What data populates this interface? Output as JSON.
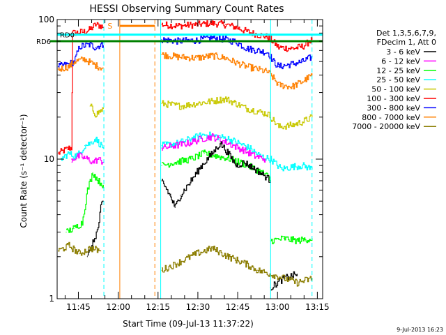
{
  "chart_data": {
    "type": "line",
    "title": "HESSI Observing Summary Count Rates",
    "xlabel": "Start Time (09-Jul-13 11:37:22)",
    "ylabel": "Count Rate (s⁻¹ detector⁻¹)",
    "yscale": "log",
    "ylim": [
      1,
      100
    ],
    "xlim_minutes": [
      -0.4,
      99.6
    ],
    "x_ticks": [
      {
        "label": "11:45",
        "min": 7.6
      },
      {
        "label": "12:00",
        "min": 22.6
      },
      {
        "label": "12:15",
        "min": 37.6
      },
      {
        "label": "12:30",
        "min": 52.6
      },
      {
        "label": "12:45",
        "min": 67.6
      },
      {
        "label": "13:00",
        "min": 82.6
      },
      {
        "label": "13:15",
        "min": 97.6
      }
    ],
    "y_ticks": [
      {
        "label": "1",
        "value": 1
      },
      {
        "label": "10",
        "value": 10
      },
      {
        "label": "100",
        "value": 100
      }
    ],
    "legend": {
      "placement": "right",
      "header": [
        "Det 1,3,5,6,7,9,",
        "FDecim 1, Att 0"
      ],
      "entries": [
        {
          "label": "3 - 6 keV",
          "color": "#000000"
        },
        {
          "label": "6 - 12 keV",
          "color": "#ff00ff"
        },
        {
          "label": "12 - 25 keV",
          "color": "#00ff00"
        },
        {
          "label": "25 - 50 keV",
          "color": "#00ffff"
        },
        {
          "label": "50 - 100 keV",
          "color": "#c8c800"
        },
        {
          "label": "100 - 300 keV",
          "color": "#ff0000"
        },
        {
          "label": "300 - 800 keV",
          "color": "#0000ff"
        },
        {
          "label": "800 - 7000 keV",
          "color": "#ff8000"
        },
        {
          "label": "7000 - 20000 keV",
          "color": "#8b7d00"
        }
      ]
    },
    "annotations": {
      "rd0_label": "RD0",
      "rd6_label": "RD6",
      "marker_s": "S",
      "rd0_value": 78,
      "rd6_value": 70,
      "rd0_color": "#00ffff",
      "rd6_color": "#008000"
    },
    "vertical_lines": [
      {
        "min": 17.2,
        "color": "#00ffff",
        "style": "dashed"
      },
      {
        "min": 23.2,
        "color": "#ff8000",
        "style": "solid"
      },
      {
        "min": 36.4,
        "color": "#ff8000",
        "style": "dashed"
      },
      {
        "min": 38.6,
        "color": "#00ffff",
        "style": "solid"
      },
      {
        "min": 80.0,
        "color": "#00ffff",
        "style": "solid"
      },
      {
        "min": 95.6,
        "color": "#00ffff",
        "style": "dashed"
      }
    ],
    "saturation_segment": {
      "x_min": [
        23.2,
        36.4
      ],
      "value": 90,
      "color": "#ff8000"
    },
    "series": [
      {
        "name": "100 - 300 keV",
        "color": "#ff0000",
        "segments": [
          [
            [
              0,
              11
            ],
            [
              4,
              12
            ],
            [
              5,
              12
            ],
            [
              5.4,
              80
            ],
            [
              10,
              82
            ],
            [
              12,
              85
            ],
            [
              14,
              92
            ],
            [
              16,
              90
            ],
            [
              17,
              88
            ]
          ],
          [
            [
              39,
              92
            ],
            [
              45,
              90
            ],
            [
              52,
              92
            ],
            [
              58,
              94
            ],
            [
              63,
              92
            ],
            [
              67,
              88
            ],
            [
              71,
              82
            ],
            [
              75,
              78
            ],
            [
              79,
              75
            ],
            [
              80,
              72
            ],
            [
              83,
              63
            ],
            [
              88,
              62
            ],
            [
              92,
              64
            ],
            [
              95.6,
              72
            ]
          ]
        ]
      },
      {
        "name": "300 - 800 keV",
        "color": "#0000ff",
        "segments": [
          [
            [
              0,
              46
            ],
            [
              4,
              48
            ],
            [
              6,
              50
            ],
            [
              8,
              64
            ],
            [
              12,
              66
            ],
            [
              14,
              63
            ],
            [
              16,
              66
            ],
            [
              17,
              65
            ]
          ],
          [
            [
              39,
              72
            ],
            [
              45,
              70
            ],
            [
              52,
              71
            ],
            [
              58,
              74
            ],
            [
              63,
              72
            ],
            [
              67,
              69
            ],
            [
              71,
              62
            ],
            [
              75,
              60
            ],
            [
              79,
              58
            ],
            [
              81,
              50
            ],
            [
              83,
              46
            ],
            [
              88,
              48
            ],
            [
              92,
              50
            ],
            [
              95.6,
              54
            ]
          ]
        ]
      },
      {
        "name": "800 - 7000 keV",
        "color": "#ff8000",
        "segments": [
          [
            [
              0,
              44
            ],
            [
              4,
              46
            ],
            [
              6,
              50
            ],
            [
              10,
              52
            ],
            [
              13,
              48
            ],
            [
              15,
              46
            ],
            [
              17,
              45
            ]
          ],
          [
            [
              39,
              56
            ],
            [
              45,
              54
            ],
            [
              52,
              53
            ],
            [
              58,
              55
            ],
            [
              63,
              53
            ],
            [
              67,
              49
            ],
            [
              71,
              46
            ],
            [
              75,
              44
            ],
            [
              79,
              42
            ],
            [
              81,
              38
            ],
            [
              83,
              34
            ],
            [
              88,
              33
            ],
            [
              92,
              36
            ],
            [
              95.6,
              40
            ]
          ]
        ]
      },
      {
        "name": "50 - 100 keV",
        "color": "#c8c800",
        "segments": [
          [
            [
              12,
              24
            ],
            [
              14,
              21
            ],
            [
              15,
              21.5
            ],
            [
              17,
              23
            ]
          ],
          [
            [
              39,
              25
            ],
            [
              46,
              24
            ],
            [
              52,
              25
            ],
            [
              58,
              26
            ],
            [
              63,
              27
            ],
            [
              67,
              25
            ],
            [
              71,
              23
            ],
            [
              75,
              22
            ],
            [
              79,
              21
            ],
            [
              81,
              19
            ],
            [
              83,
              17
            ],
            [
              88,
              17.5
            ],
            [
              92,
              18.5
            ],
            [
              95.6,
              20
            ]
          ]
        ]
      },
      {
        "name": "25 - 50 keV",
        "color": "#00ffff",
        "segments": [
          [
            [
              1,
              10
            ],
            [
              4,
              11
            ],
            [
              6,
              10.5
            ],
            [
              8,
              11
            ],
            [
              10,
              12.5
            ],
            [
              12,
              13
            ],
            [
              14,
              14
            ],
            [
              17,
              12
            ]
          ],
          [
            [
              39,
              12.5
            ],
            [
              45,
              13
            ],
            [
              50,
              14
            ],
            [
              55,
              15
            ],
            [
              60,
              14.5
            ],
            [
              64,
              14
            ],
            [
              68,
              13
            ],
            [
              72,
              12
            ],
            [
              76,
              10.5
            ],
            [
              80,
              10
            ],
            [
              84,
              8.5
            ],
            [
              88,
              8.8
            ],
            [
              92,
              9
            ],
            [
              95.6,
              8.5
            ]
          ]
        ]
      },
      {
        "name": "6 - 12 keV",
        "color": "#ff00ff",
        "segments": [
          [
            [
              5,
              10
            ],
            [
              8,
              10.5
            ],
            [
              11,
              10
            ],
            [
              13,
              9.5
            ],
            [
              15,
              10
            ],
            [
              17,
              9.5
            ]
          ],
          [
            [
              39,
              12
            ],
            [
              44,
              12.5
            ],
            [
              49,
              13
            ],
            [
              54,
              14
            ],
            [
              58,
              14.5
            ],
            [
              62,
              13.5
            ],
            [
              66,
              12.5
            ],
            [
              70,
              11.5
            ],
            [
              74,
              10.5
            ],
            [
              78,
              10
            ]
          ]
        ]
      },
      {
        "name": "12 - 25 keV",
        "color": "#00ff00",
        "segments": [
          [
            [
              3,
              3
            ],
            [
              6,
              3.2
            ],
            [
              9,
              3.5
            ],
            [
              11,
              6
            ],
            [
              13,
              8
            ],
            [
              15,
              7
            ],
            [
              17,
              6.5
            ]
          ],
          [
            [
              39,
              9
            ],
            [
              44,
              9.5
            ],
            [
              50,
              10
            ],
            [
              55,
              11
            ],
            [
              60,
              10.5
            ],
            [
              65,
              10
            ],
            [
              70,
              9.2
            ],
            [
              74,
              8.5
            ],
            [
              78,
              7.8
            ],
            [
              80,
              7
            ]
          ],
          [
            [
              80,
              2.6
            ],
            [
              85,
              2.7
            ],
            [
              90,
              2.6
            ],
            [
              95.6,
              2.7
            ]
          ]
        ]
      },
      {
        "name": "3 - 6 keV",
        "color": "#000000",
        "segments": [
          [
            [
              11,
              2
            ],
            [
              13,
              2.5
            ],
            [
              15,
              3.2
            ],
            [
              16,
              4.5
            ],
            [
              17,
              5
            ]
          ],
          [
            [
              39,
              7
            ],
            [
              42,
              5.5
            ],
            [
              44,
              4.5
            ],
            [
              46,
              5.5
            ],
            [
              50,
              7
            ],
            [
              54,
              9
            ],
            [
              58,
              11
            ],
            [
              61,
              13
            ],
            [
              64,
              11
            ],
            [
              67,
              9
            ],
            [
              70,
              9.5
            ],
            [
              74,
              8.5
            ],
            [
              78,
              7.5
            ],
            [
              80,
              7
            ]
          ],
          [
            [
              80,
              1.2
            ],
            [
              85,
              1.4
            ],
            [
              90,
              1.5
            ]
          ]
        ]
      },
      {
        "name": "7000 - 20000 keV",
        "color": "#8b7d00",
        "segments": [
          [
            [
              0,
              2.2
            ],
            [
              4,
              2.4
            ],
            [
              8,
              2.1
            ],
            [
              12,
              2.3
            ],
            [
              16,
              2.2
            ]
          ],
          [
            [
              39,
              1.6
            ],
            [
              45,
              1.8
            ],
            [
              52,
              2.1
            ],
            [
              58,
              2.3
            ],
            [
              64,
              2.0
            ],
            [
              70,
              1.8
            ],
            [
              75,
              1.6
            ],
            [
              80,
              1.5
            ],
            [
              85,
              1.4
            ],
            [
              90,
              1.3
            ],
            [
              95.6,
              1.4
            ]
          ]
        ]
      }
    ]
  },
  "footer": {
    "datestamp": "9-Jul-2013 16:23"
  }
}
